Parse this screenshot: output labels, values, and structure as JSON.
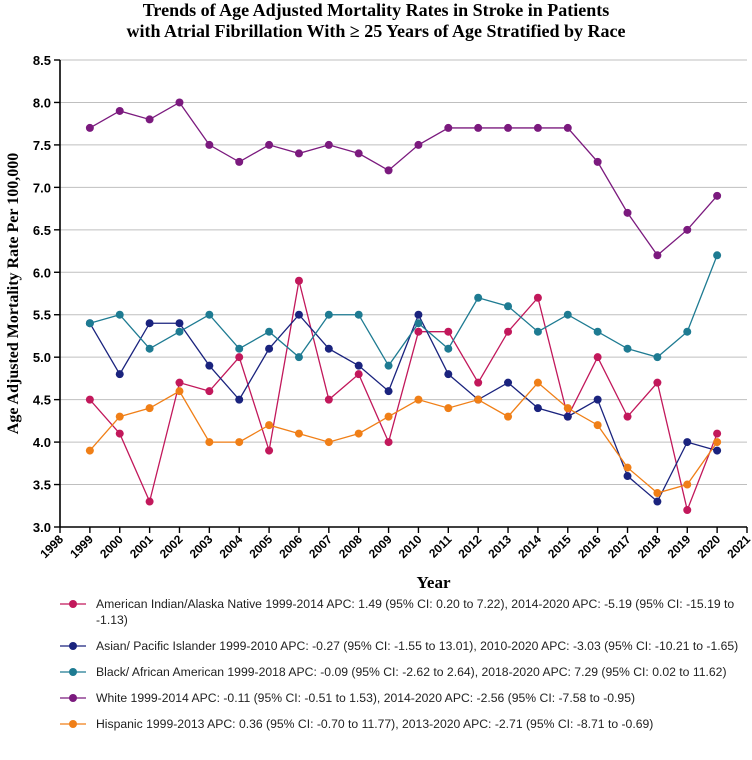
{
  "chart_data": {
    "type": "line",
    "title_lines": [
      "Trends of Age Adjusted Mortality Rates in Stroke in Patients",
      "with Atrial Fibrillation With ≥ 25 Years of Age Stratified by Race"
    ],
    "xlabel": "Year",
    "ylabel": "Age Adjusted Mortality Rate Per 100,000",
    "xlim": [
      1998,
      2021
    ],
    "ylim": [
      3.0,
      8.5
    ],
    "x_ticks": [
      1998,
      1999,
      2000,
      2001,
      2002,
      2003,
      2004,
      2005,
      2006,
      2007,
      2008,
      2009,
      2010,
      2011,
      2012,
      2013,
      2014,
      2015,
      2016,
      2017,
      2018,
      2019,
      2020,
      2021
    ],
    "y_ticks": [
      3.0,
      3.5,
      4.0,
      4.5,
      5.0,
      5.5,
      6.0,
      6.5,
      7.0,
      7.5,
      8.0,
      8.5
    ],
    "grid": "horizontal",
    "x": [
      1999,
      2000,
      2001,
      2002,
      2003,
      2004,
      2005,
      2006,
      2007,
      2008,
      2009,
      2010,
      2011,
      2012,
      2013,
      2014,
      2015,
      2016,
      2017,
      2018,
      2019,
      2020
    ],
    "series": [
      {
        "name": "American Indian/Alaska Native",
        "color": "#c2185b",
        "legend": "American Indian/Alaska Native 1999-2014 APC: 1.49 (95% CI: 0.20 to 7.22), 2014-2020 APC: -5.19 (95% CI: -15.19 to -1.13)",
        "values": [
          4.5,
          4.1,
          3.3,
          4.7,
          4.6,
          5.0,
          3.9,
          5.9,
          4.5,
          4.8,
          4.0,
          5.3,
          5.3,
          4.7,
          5.3,
          5.7,
          4.3,
          5.0,
          4.3,
          4.7,
          3.2,
          4.1
        ]
      },
      {
        "name": "Asian/ Pacific Islander",
        "color": "#1a237e",
        "legend": "Asian/ Pacific Islander 1999-2010 APC: -0.27 (95% CI: -1.55 to 13.01), 2010-2020 APC: -3.03 (95% CI: -10.21 to -1.65)",
        "values": [
          5.4,
          4.8,
          5.4,
          5.4,
          4.9,
          4.5,
          5.1,
          5.5,
          5.1,
          4.9,
          4.6,
          5.5,
          4.8,
          4.5,
          4.7,
          4.4,
          4.3,
          4.5,
          3.6,
          3.3,
          4.0,
          3.9
        ]
      },
      {
        "name": "Black/ African American",
        "color": "#1e7b92",
        "legend": "Black/ African American 1999-2018 APC: -0.09 (95% CI: -2.62 to 2.64), 2018-2020 APC: 7.29 (95% CI: 0.02 to 11.62)",
        "values": [
          5.4,
          5.5,
          5.1,
          5.3,
          5.5,
          5.1,
          5.3,
          5.0,
          5.5,
          5.5,
          4.9,
          5.4,
          5.1,
          5.7,
          5.6,
          5.3,
          5.5,
          5.3,
          5.1,
          5.0,
          5.3,
          6.2
        ]
      },
      {
        "name": "White",
        "color": "#7b1a7e",
        "legend": "White 1999-2014 APC: -0.11 (95% CI: -0.51 to 1.53), 2014-2020 APC: -2.56 (95% CI: -7.58 to -0.95)",
        "values": [
          7.7,
          7.9,
          7.8,
          8.0,
          7.5,
          7.3,
          7.5,
          7.4,
          7.5,
          7.4,
          7.2,
          7.5,
          7.7,
          7.7,
          7.7,
          7.7,
          7.7,
          7.3,
          6.7,
          6.2,
          6.5,
          6.9
        ]
      },
      {
        "name": "Hispanic",
        "color": "#f07f17",
        "legend": "Hispanic 1999-2013 APC: 0.36 (95% CI: -0.70 to 11.77), 2013-2020 APC: -2.71 (95% CI: -8.71 to -0.69)",
        "values": [
          3.9,
          4.3,
          4.4,
          4.6,
          4.0,
          4.0,
          4.2,
          4.1,
          4.0,
          4.1,
          4.3,
          4.5,
          4.4,
          4.5,
          4.3,
          4.7,
          4.4,
          4.2,
          3.7,
          3.4,
          3.5,
          4.0
        ]
      }
    ]
  }
}
